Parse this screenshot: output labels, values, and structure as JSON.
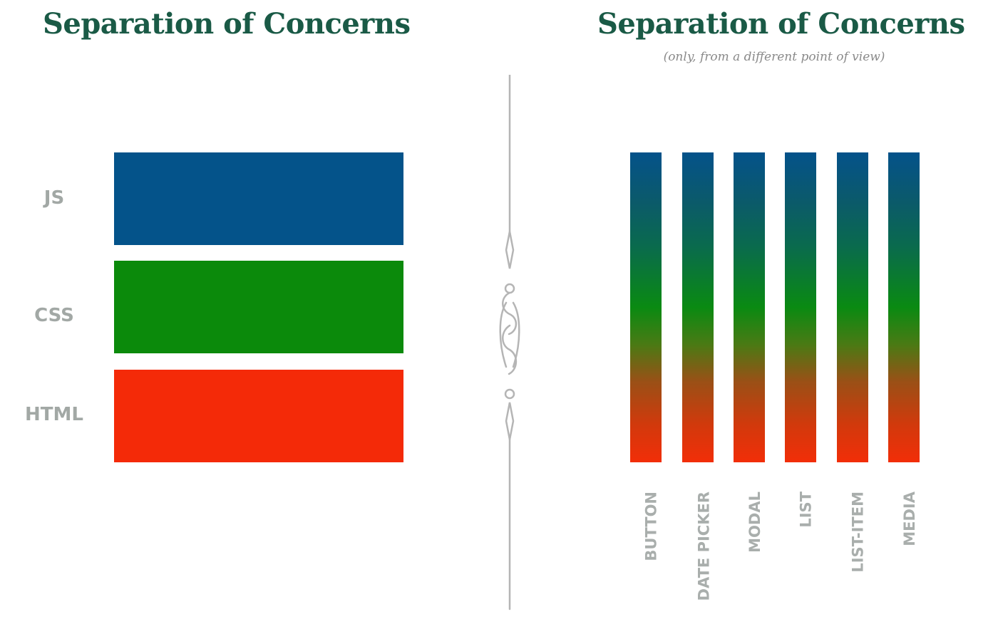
{
  "left": {
    "title": "Separation of Concerns",
    "layers": [
      {
        "label": "JS",
        "color": "#04538a"
      },
      {
        "label": "CSS",
        "color": "#0b8a0b"
      },
      {
        "label": "HTML",
        "color": "#f42a08"
      }
    ]
  },
  "right": {
    "title": "Separation of Concerns",
    "subtitle": "(only, from a different point of view)",
    "components": [
      {
        "label": "BUTTON"
      },
      {
        "label": "DATE PICKER"
      },
      {
        "label": "MODAL"
      },
      {
        "label": "LIST"
      },
      {
        "label": "LIST-ITEM"
      },
      {
        "label": "MEDIA"
      }
    ]
  },
  "colors": {
    "title": "#1a5a46",
    "label": "#a2a8a5",
    "divider": "#b5b5b5"
  }
}
